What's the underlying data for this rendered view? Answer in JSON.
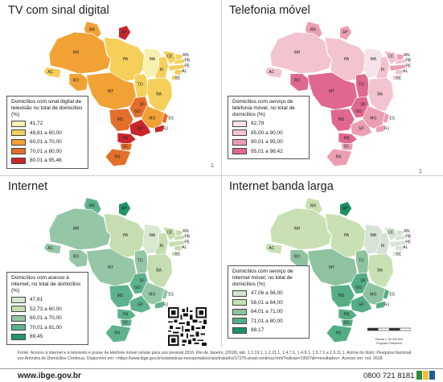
{
  "panels": {
    "tv": {
      "title": "TV com sinal digital",
      "legend_title": "Domicílios com sinal digital de televisão no total de domicílios (%)",
      "classes": [
        {
          "label": "41,72",
          "color": "#f7f0b0"
        },
        {
          "label": "49,81 a 60,00",
          "color": "#f6cf5a"
        },
        {
          "label": "60,01 a 70,00",
          "color": "#f2a235"
        },
        {
          "label": "70,01 a 80,00",
          "color": "#e36f2a"
        },
        {
          "label": "80,01 a 95,46",
          "color": "#c9252b"
        }
      ],
      "page_number": "1"
    },
    "phone": {
      "title": "Telefonia móvel",
      "legend_title": "Domicílios com serviço de telefonia móvel, no total de domicílios (%)",
      "classes": [
        {
          "label": "82,79",
          "color": "#f7e1ea"
        },
        {
          "label": "85,00 a 90,00",
          "color": "#f3c4cf"
        },
        {
          "label": "90,01 a 95,00",
          "color": "#ec9fb2"
        },
        {
          "label": "95,01 a 98,42",
          "color": "#e0688e"
        }
      ],
      "page_number": "1"
    },
    "internet": {
      "title": "Internet",
      "legend_title": "Domicílios com acesso à internet, no total de domicílios (%)",
      "classes": [
        {
          "label": "47,61",
          "color": "#d9e8d0"
        },
        {
          "label": "52,73 a 60,00",
          "color": "#c5ddb0"
        },
        {
          "label": "60,01 a 70,00",
          "color": "#95c6a5"
        },
        {
          "label": "70,01 a 81,00",
          "color": "#5eb28b"
        },
        {
          "label": "89,45",
          "color": "#22936a"
        }
      ]
    },
    "broadband": {
      "title": "Internet banda larga",
      "legend_title": "Domicílios com serviço de internet móvel, no total de domicílios (%)",
      "classes": [
        {
          "label": "47,06 a 56,00",
          "color": "#d7e3d5"
        },
        {
          "label": "56,01 a 64,00",
          "color": "#c9e0b4"
        },
        {
          "label": "64,01 a 71,00",
          "color": "#8fc3a0"
        },
        {
          "label": "71,01 a 80,00",
          "color": "#55ad84"
        },
        {
          "label": "88,17",
          "color": "#1e8f63"
        }
      ]
    }
  },
  "state_labels": [
    "RR",
    "AP",
    "AM",
    "PA",
    "MA",
    "CE",
    "RN",
    "PB",
    "PE",
    "AL",
    "SE",
    "PI",
    "AC",
    "RO",
    "TO",
    "BA",
    "MT",
    "DF",
    "GO",
    "MG",
    "ES",
    "MS",
    "SP",
    "RJ",
    "PR",
    "SC",
    "RS"
  ],
  "source_text": "Fonte: Acesso à internet e à televisão e posse de telefone móvel celular para uso pessoal 2016. Rio de Janeiro, [2018]. tab. 1.2.19.1, 1.2.21.1, 1.4.7.1, 1.4.9.1, 1.5.7.1 e 1.6.11.1. Acima do título: Pesquisa Nacional por Amostra de Domicílios Contínua. Disponível em: <https://www.ibge.gov.br/estatisticas-novoportal/sociais/trabalho/17270-pnad-continua.html?edicao=19937&t=resultados>. Acesso em: out. 2018.",
  "footer": {
    "website": "www.ibge.gov.br",
    "phone": "0800 721 8181"
  },
  "scale_label": "Escala 1: 50 000 000",
  "projection_label": "Projeção Policônica"
}
